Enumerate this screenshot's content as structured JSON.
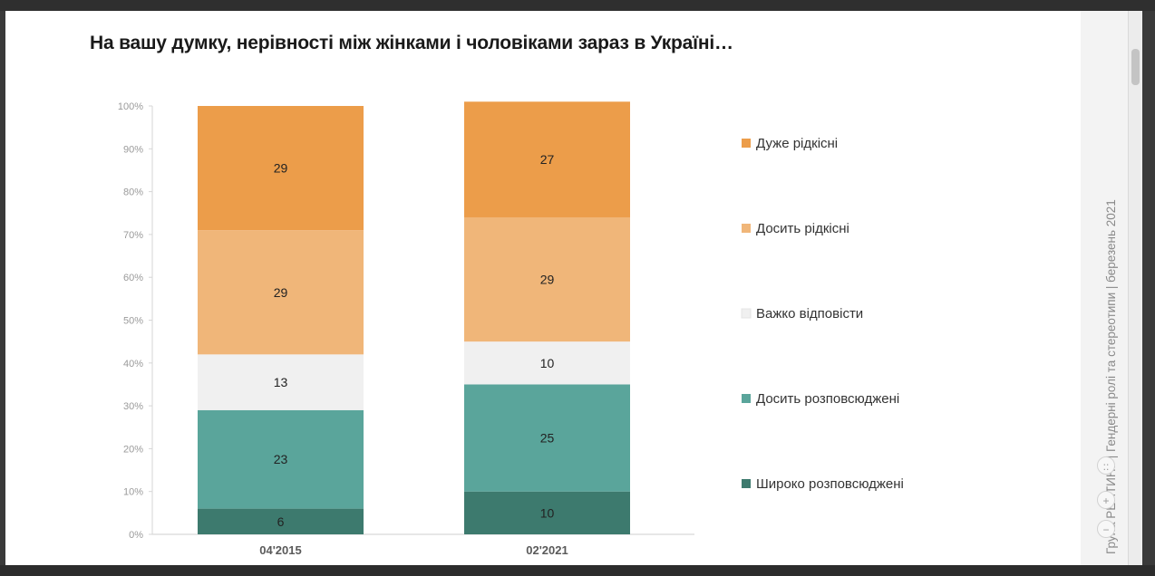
{
  "title": "На вашу думку, нерівності між жінками і чоловіками зараз в Україні…",
  "side_note": "Група РЕЙТИНГ | Гендерні ролі та стереотипи | березень 2021",
  "zoom_controls": {
    "fit": "::",
    "plus": "+",
    "minus": "−"
  },
  "chart_data": {
    "type": "bar",
    "stacked": true,
    "percent": true,
    "categories": [
      "04'2015",
      "02'2021"
    ],
    "ylim": [
      0,
      100
    ],
    "yticks": [
      "0%",
      "10%",
      "20%",
      "30%",
      "40%",
      "50%",
      "60%",
      "70%",
      "80%",
      "90%",
      "100%"
    ],
    "legend_position": "right",
    "series": [
      {
        "name": "Широко розповсюджені",
        "values": [
          6,
          10
        ],
        "color": "#3d7a6e"
      },
      {
        "name": "Досить розповсюджені",
        "values": [
          23,
          25
        ],
        "color": "#5aa59b"
      },
      {
        "name": "Важко відповісти",
        "values": [
          13,
          10
        ],
        "color": "#f0f0f0"
      },
      {
        "name": "Досить рідкісні",
        "values": [
          29,
          29
        ],
        "color": "#f0b679"
      },
      {
        "name": "Дуже рідкісні",
        "values": [
          29,
          27
        ],
        "color": "#ec9d4a"
      }
    ]
  }
}
